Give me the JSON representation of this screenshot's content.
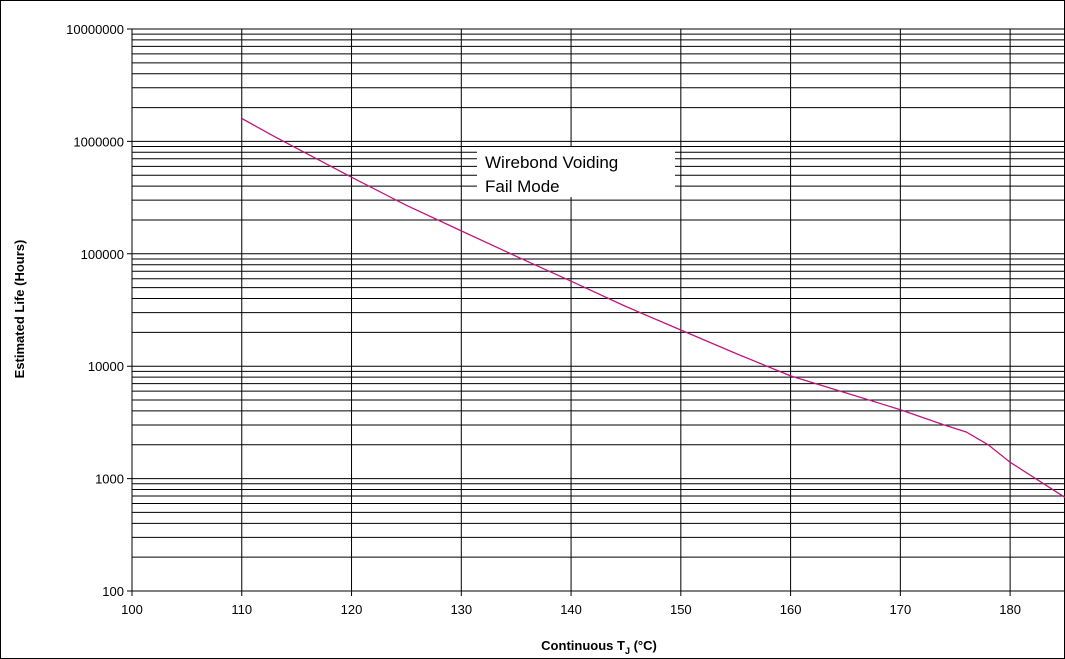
{
  "chart_data": {
    "type": "line",
    "title": "",
    "xlabel": "Continuous T",
    "xlabel_subscript": "J",
    "xlabel_suffix": " (°C)",
    "ylabel": "Estimated Life (Hours)",
    "x_scale": "linear",
    "y_scale": "log",
    "xlim": [
      100,
      185
    ],
    "ylim": [
      100,
      10000000
    ],
    "x_ticks": [
      "100",
      "110",
      "120",
      "130",
      "140",
      "150",
      "160",
      "170",
      "180"
    ],
    "y_ticks": [
      "100",
      "1000",
      "10000",
      "100000",
      "1000000",
      "10000000"
    ],
    "grid": true,
    "legend": "none",
    "series": [
      {
        "color": "#c0157f",
        "x": [
          110,
          113,
          120,
          125,
          130,
          135,
          140,
          145,
          150,
          155,
          160,
          165,
          170,
          174,
          176,
          178,
          180,
          185
        ],
        "y": [
          1600000,
          1100000,
          480000,
          270000,
          160000,
          95000,
          57000,
          34000,
          21000,
          13000,
          8200,
          5800,
          4100,
          3000,
          2600,
          2000,
          1400,
          680
        ]
      }
    ],
    "annotations": [
      {
        "lines": [
          "Wirebond Voiding",
          "Fail Mode"
        ]
      }
    ]
  }
}
